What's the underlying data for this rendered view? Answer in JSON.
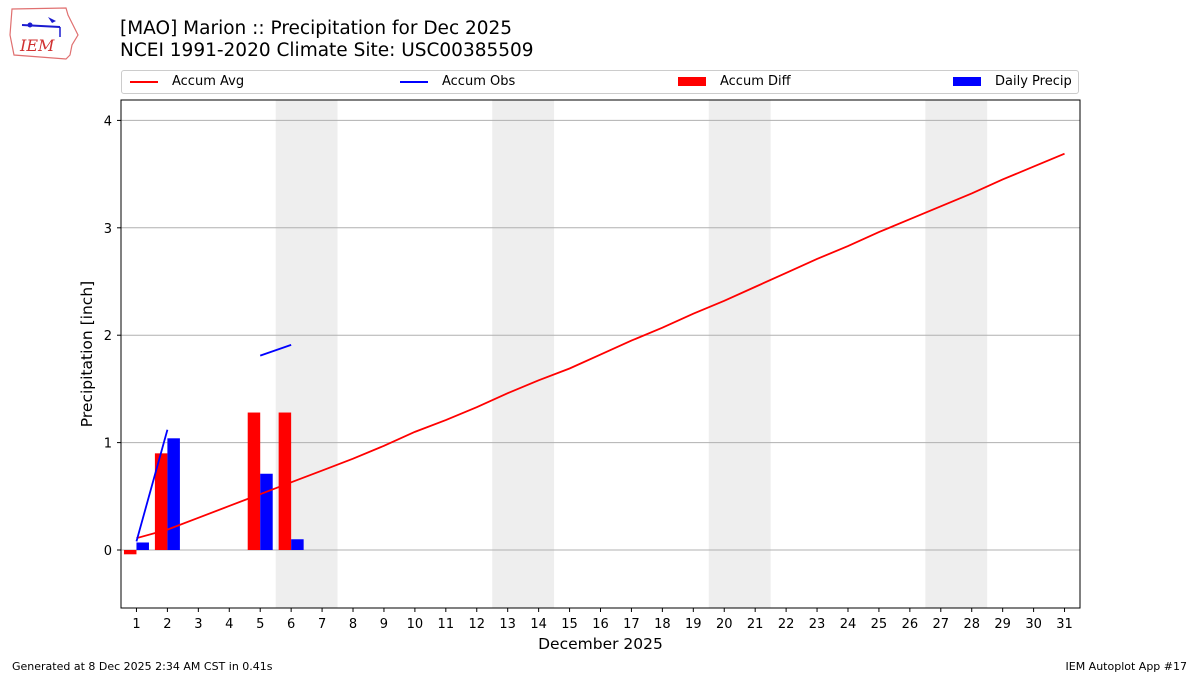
{
  "header": {
    "title_line1": "[MAO] Marion :: Precipitation for Dec 2025",
    "title_line2": "NCEI 1991-2020 Climate Site: USC00385509",
    "logo_text": "IEM"
  },
  "legend": {
    "items": [
      {
        "label": "Accum Avg",
        "color": "#ff0000",
        "kind": "line"
      },
      {
        "label": "Accum Obs",
        "color": "#0000ff",
        "kind": "line"
      },
      {
        "label": "Accum Diff",
        "color": "#ff0000",
        "kind": "bar"
      },
      {
        "label": "Daily Precip",
        "color": "#0000ff",
        "kind": "bar"
      }
    ]
  },
  "footer": {
    "generated": "Generated at 8 Dec 2025 2:34 AM CST in 0.41s",
    "app": "IEM Autoplot App #17"
  },
  "chart_data": {
    "type": "bar",
    "title": "[MAO] Marion :: Precipitation for Dec 2025",
    "subtitle": "NCEI 1991-2020 Climate Site: USC00385509",
    "xlabel": "December 2025",
    "ylabel": "Precipitation [inch]",
    "ylim": [
      -0.54,
      4.19
    ],
    "xlim": [
      0.5,
      31.5
    ],
    "yticks": [
      0,
      1,
      2,
      3,
      4
    ],
    "x": [
      1,
      2,
      3,
      4,
      5,
      6,
      7,
      8,
      9,
      10,
      11,
      12,
      13,
      14,
      15,
      16,
      17,
      18,
      19,
      20,
      21,
      22,
      23,
      24,
      25,
      26,
      27,
      28,
      29,
      30,
      31
    ],
    "grid": "y",
    "legend_position": "top",
    "weekend_shading": [
      [
        5.5,
        7.5
      ],
      [
        12.5,
        14.5
      ],
      [
        19.5,
        21.5
      ],
      [
        26.5,
        28.5
      ]
    ],
    "series": [
      {
        "name": "Accum Avg",
        "type": "line",
        "color": "#ff0000",
        "x": [
          1,
          2,
          3,
          4,
          5,
          6,
          7,
          8,
          9,
          10,
          11,
          12,
          13,
          14,
          15,
          16,
          17,
          18,
          19,
          20,
          21,
          22,
          23,
          24,
          25,
          26,
          27,
          28,
          29,
          30,
          31
        ],
        "values": [
          0.11,
          0.19,
          0.3,
          0.41,
          0.52,
          0.63,
          0.74,
          0.85,
          0.97,
          1.1,
          1.21,
          1.33,
          1.46,
          1.58,
          1.69,
          1.82,
          1.95,
          2.07,
          2.2,
          2.32,
          2.45,
          2.58,
          2.71,
          2.83,
          2.96,
          3.08,
          3.2,
          3.32,
          3.45,
          3.57,
          3.69
        ]
      },
      {
        "name": "Accum Obs",
        "type": "line",
        "color": "#0000ff",
        "segments": [
          {
            "x": [
              1,
              2
            ],
            "values": [
              0.08,
              1.12
            ]
          },
          {
            "x": [
              5,
              6
            ],
            "values": [
              1.81,
              1.91
            ]
          }
        ]
      },
      {
        "name": "Accum Diff",
        "type": "bar",
        "color": "#ff0000",
        "x": [
          1,
          2,
          5,
          6
        ],
        "values": [
          -0.04,
          0.9,
          1.28,
          1.28
        ]
      },
      {
        "name": "Daily Precip",
        "type": "bar",
        "color": "#0000ff",
        "x": [
          1,
          2,
          5,
          6
        ],
        "values": [
          0.07,
          1.04,
          0.71,
          0.1
        ]
      }
    ]
  }
}
